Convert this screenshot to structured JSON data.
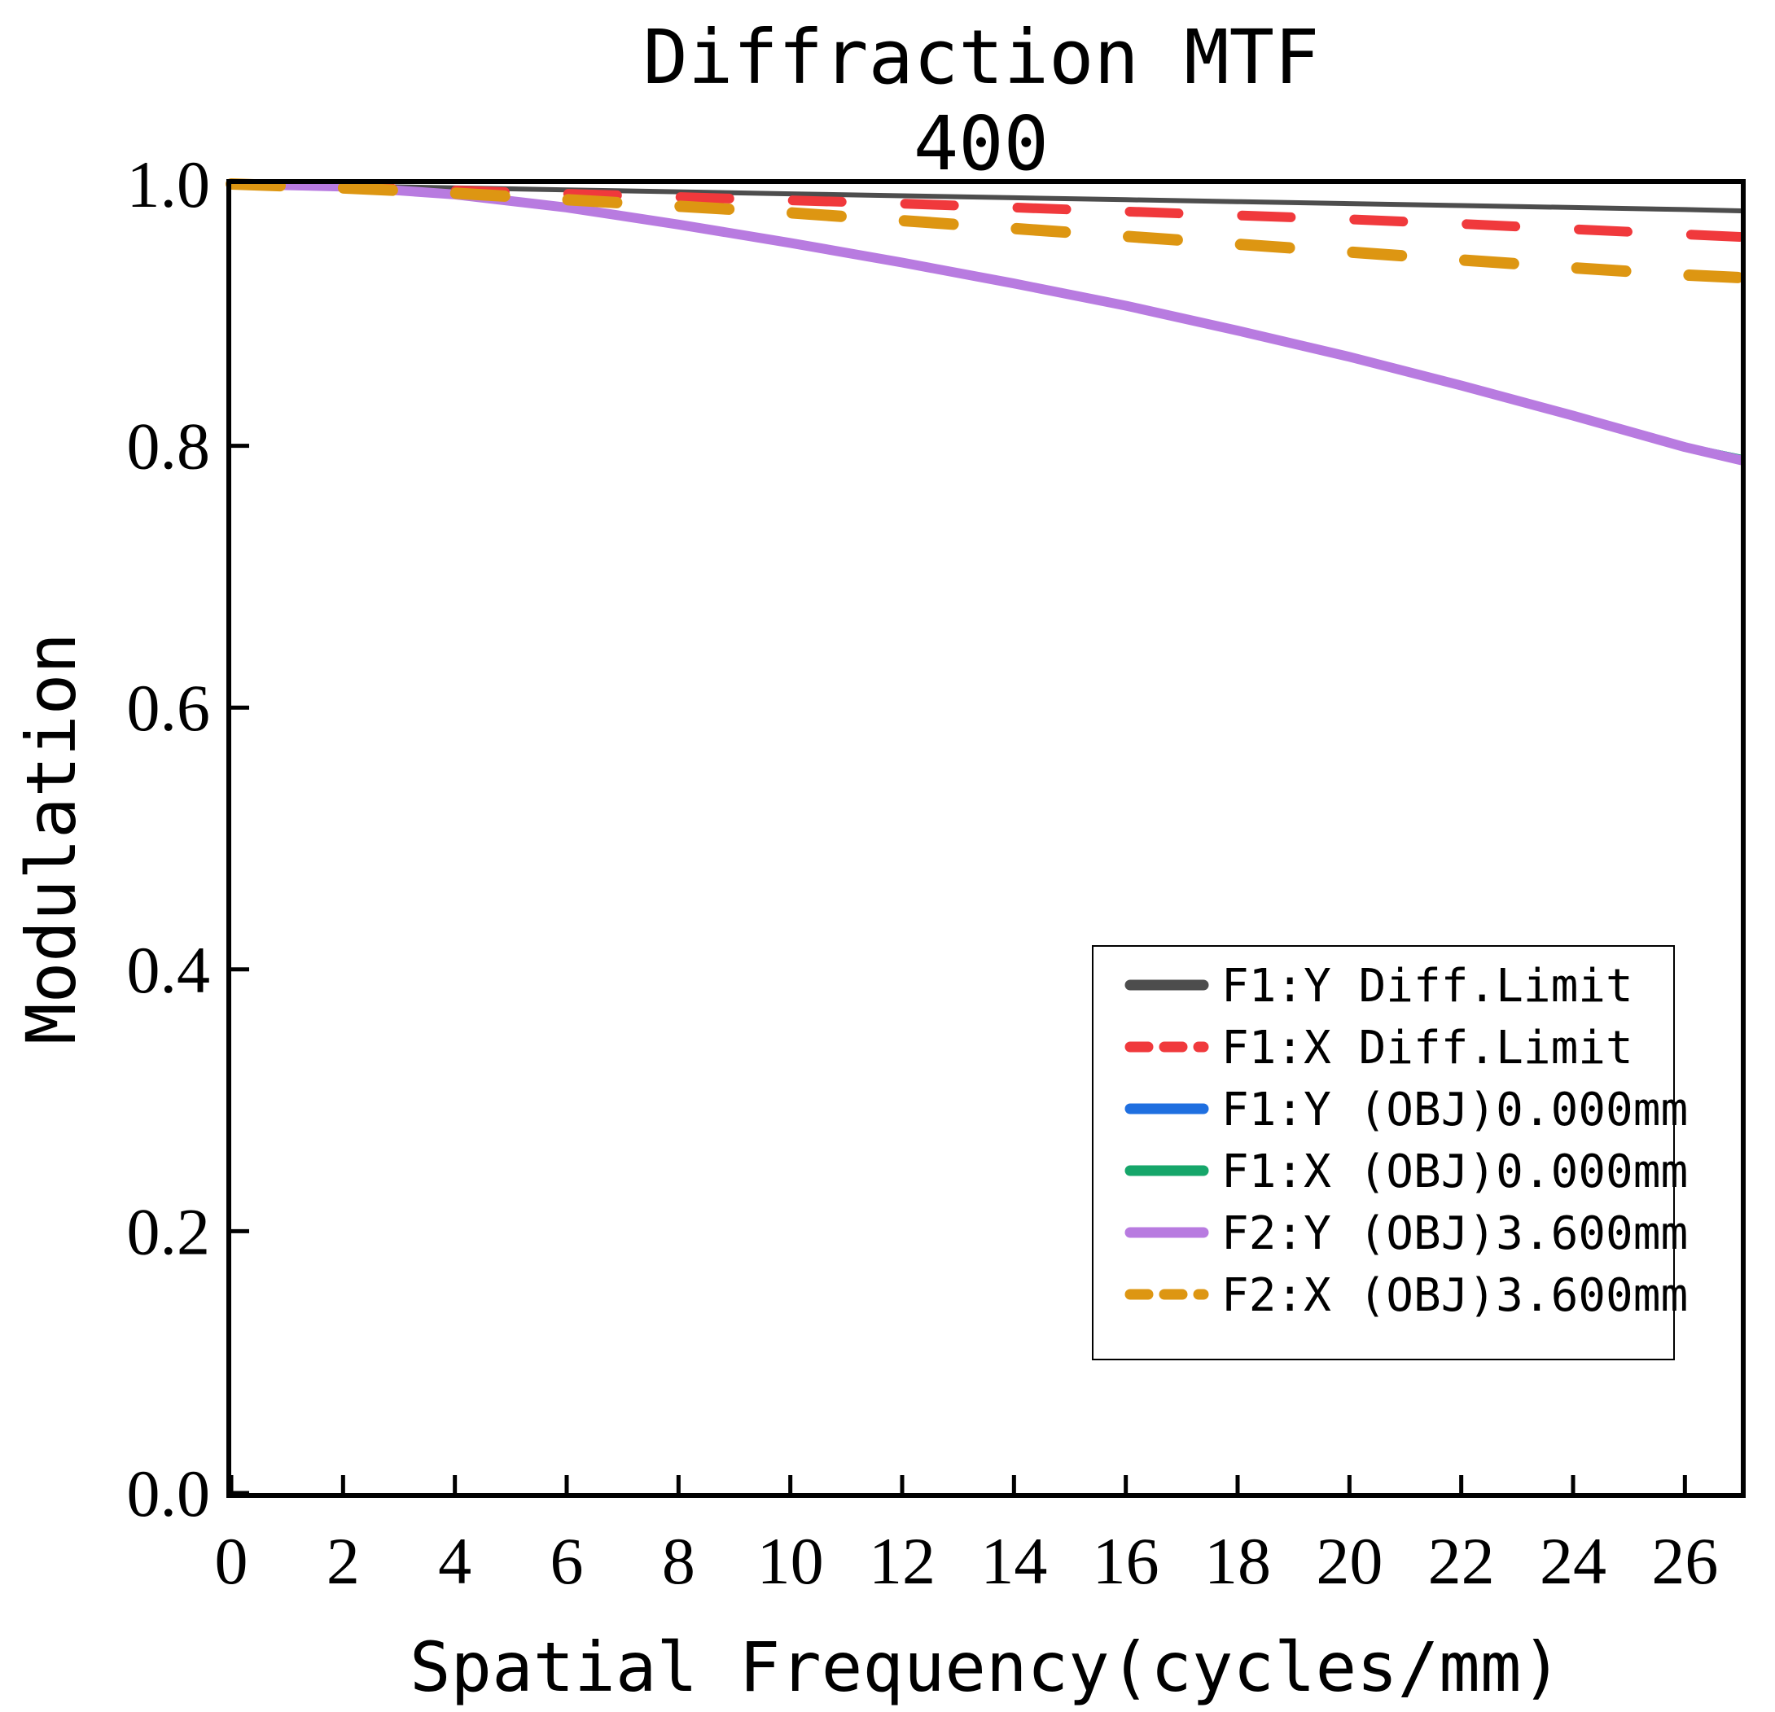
{
  "chart_data": {
    "type": "line",
    "title": "Diffraction MTF",
    "subtitle": "400",
    "xlabel": "Spatial Frequency(cycles/mm)",
    "ylabel": "Modulation",
    "xlim": [
      0,
      27
    ],
    "ylim": [
      0,
      1.0
    ],
    "xticks": [
      "0",
      "2",
      "4",
      "6",
      "8",
      "10",
      "12",
      "14",
      "16",
      "18",
      "20",
      "22",
      "24",
      "26"
    ],
    "yticks": [
      "0.0",
      "0.2",
      "0.4",
      "0.6",
      "0.8",
      "1.0"
    ],
    "legend_position": "right-middle",
    "x": [
      0,
      2,
      4,
      6,
      8,
      10,
      12,
      14,
      16,
      18,
      20,
      22,
      24,
      26,
      27
    ],
    "series": [
      {
        "name": "F1:Y Diff.Limit",
        "color": "#4d4d4d",
        "style": "solid",
        "values": [
          1.0,
          0.9985,
          0.997,
          0.9955,
          0.994,
          0.9925,
          0.991,
          0.9895,
          0.988,
          0.9865,
          0.985,
          0.9835,
          0.982,
          0.9805,
          0.9795
        ]
      },
      {
        "name": "F1:X Diff.Limit",
        "color": "#f0393c",
        "style": "dashed",
        "values": [
          1.0,
          0.9975,
          0.995,
          0.9925,
          0.99,
          0.9875,
          0.985,
          0.982,
          0.979,
          0.976,
          0.973,
          0.9695,
          0.9655,
          0.9615,
          0.9595
        ]
      },
      {
        "name": "F1:Y (OBJ)0.000mm",
        "color": "#1f6fe0",
        "style": "solid",
        "values": [
          1.0,
          0.998,
          0.992,
          0.982,
          0.969,
          0.955,
          0.94,
          0.924,
          0.907,
          0.888,
          0.868,
          0.846,
          0.823,
          0.8,
          0.791
        ]
      },
      {
        "name": "F1:X (OBJ)0.000mm",
        "color": "#16a66a",
        "style": "solid",
        "values": [
          1.0,
          0.998,
          0.992,
          0.982,
          0.969,
          0.955,
          0.94,
          0.924,
          0.907,
          0.888,
          0.868,
          0.846,
          0.823,
          0.8,
          0.791
        ]
      },
      {
        "name": "F2:Y (OBJ)3.600mm",
        "color": "#b87be0",
        "style": "solid",
        "values": [
          1.0,
          0.998,
          0.992,
          0.982,
          0.969,
          0.955,
          0.94,
          0.924,
          0.907,
          0.888,
          0.868,
          0.846,
          0.823,
          0.799,
          0.789
        ]
      },
      {
        "name": "F2:X (OBJ)3.600mm",
        "color": "#dd9612",
        "style": "dashed",
        "values": [
          1.0,
          0.997,
          0.993,
          0.988,
          0.983,
          0.978,
          0.972,
          0.966,
          0.96,
          0.954,
          0.948,
          0.942,
          0.936,
          0.9305,
          0.9285
        ]
      }
    ]
  }
}
